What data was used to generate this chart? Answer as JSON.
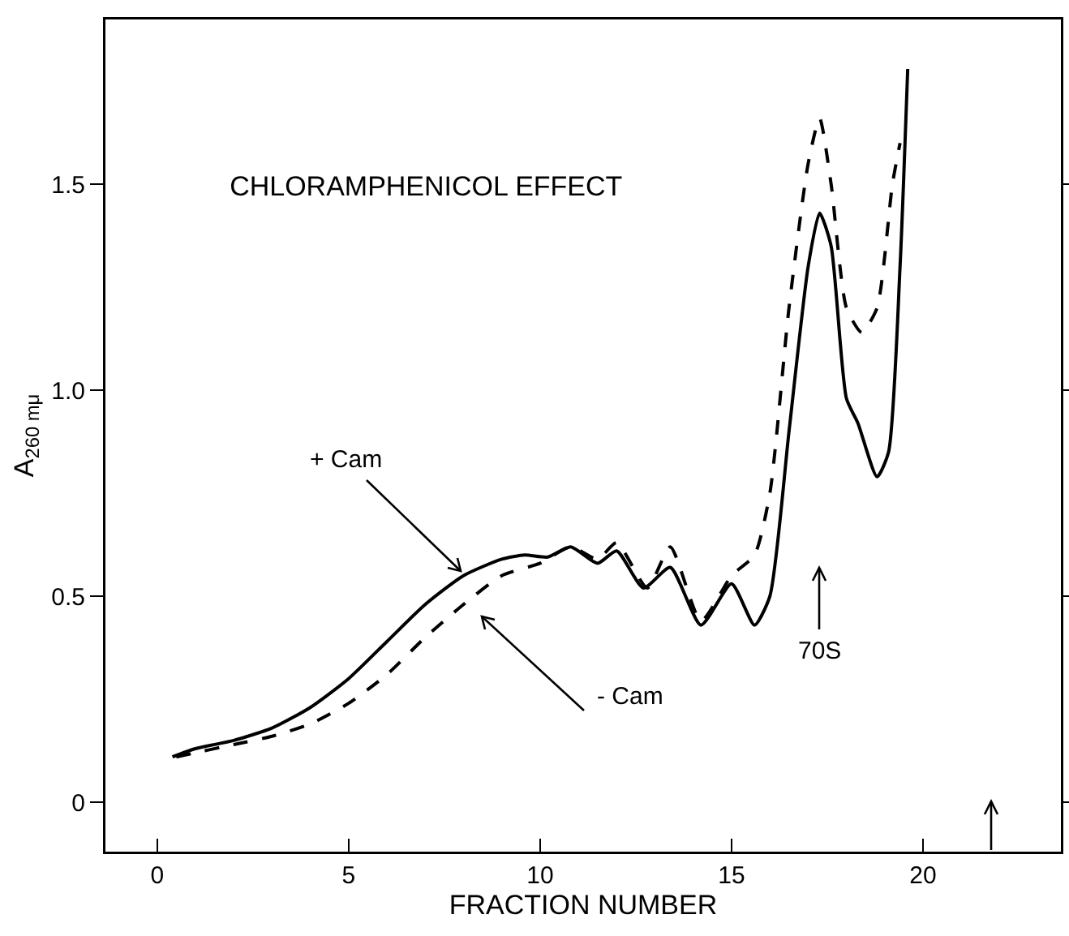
{
  "chart_data": {
    "type": "line",
    "title": "CHLORAMPHENICOL EFFECT",
    "xlabel": "FRACTION NUMBER",
    "ylabel": "A$_{260 mμ}$",
    "xlim": [
      -1.35,
      23.6
    ],
    "ylim": [
      -0.12,
      1.9
    ],
    "xticks": [
      0,
      5,
      10,
      15,
      20
    ],
    "yticks": [
      0,
      0.5,
      {
        "value": 1,
        "label": "1.0"
      },
      1.5
    ],
    "tick_labels": "xy",
    "grid": false,
    "marker": "none",
    "series": [
      {
        "color": "#000000",
        "line_style": "solid",
        "x": [
          0.4,
          1,
          2,
          3,
          4,
          5,
          6,
          7,
          8,
          9,
          9.6,
          10.2,
          10.8,
          11.5,
          12,
          12.7,
          13.4,
          14.2,
          15,
          15.6,
          16,
          16.5,
          17,
          17.3,
          17.6,
          18,
          18.3,
          18.8,
          19.1,
          19.4,
          19.6
        ],
        "values": [
          0.11,
          0.13,
          0.15,
          0.18,
          0.23,
          0.3,
          0.39,
          0.48,
          0.55,
          0.59,
          0.6,
          0.595,
          0.62,
          0.58,
          0.61,
          0.52,
          0.57,
          0.43,
          0.53,
          0.43,
          0.5,
          0.9,
          1.3,
          1.43,
          1.35,
          0.98,
          0.92,
          0.79,
          0.85,
          1.3,
          1.78
        ]
      },
      {
        "color": "#000000",
        "line_style": "dashed",
        "x": [
          0.5,
          1,
          2,
          3,
          4,
          5,
          6,
          7,
          8,
          9,
          10,
          10.8,
          11.5,
          12,
          12.8,
          13.4,
          14.2,
          15,
          15.6,
          16,
          16.5,
          17,
          17.3,
          17.6,
          18,
          18.4,
          18.8,
          19.2,
          19.4
        ],
        "values": [
          0.11,
          0.12,
          0.14,
          0.16,
          0.19,
          0.24,
          0.31,
          0.4,
          0.48,
          0.55,
          0.58,
          0.62,
          0.59,
          0.63,
          0.52,
          0.62,
          0.44,
          0.55,
          0.6,
          0.75,
          1.2,
          1.55,
          1.66,
          1.5,
          1.2,
          1.14,
          1.2,
          1.5,
          1.6
        ]
      }
    ],
    "annotations": [
      {
        "text": "+ Cam",
        "x": 8,
        "y": 0.55
      },
      "- Cam",
      "70S"
    ]
  }
}
